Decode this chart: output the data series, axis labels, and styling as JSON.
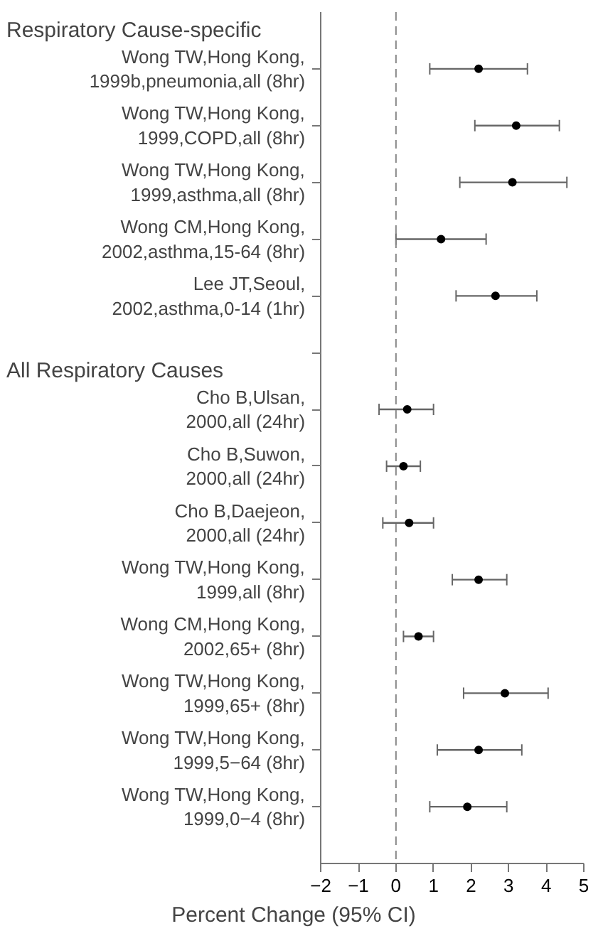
{
  "chart_data": {
    "type": "scatter",
    "orientation": "horizontal",
    "xlabel": "Percent Change (95% CI)",
    "categories": [
      "Wong TW,Hong Kong,\n1999b,pneumonia,all (8hr)",
      "Wong TW,Hong Kong,\n1999,COPD,all (8hr)",
      "Wong TW,Hong Kong,\n1999,asthma,all (8hr)",
      "Wong CM,Hong Kong,\n2002,asthma,15-64 (8hr)",
      "Lee JT,Seoul,\n2002,asthma,0-14 (1hr)",
      null,
      "Cho B,Ulsan,\n2000,all (24hr)",
      "Cho B,Suwon,\n2000,all (24hr)",
      "Cho B,Daejeon,\n2000,all (24hr)",
      "Wong TW,Hong Kong,\n1999,all (8hr)",
      "Wong CM,Hong Kong,\n2002,65+ (8hr)",
      "Wong TW,Hong Kong,\n1999,65+ (8hr)",
      "Wong TW,Hong Kong,\n1999,5−64 (8hr)",
      "Wong TW,Hong Kong,\n1999,0−4 (8hr)"
    ],
    "values": [
      2.2,
      3.2,
      3.1,
      1.2,
      2.65,
      null,
      0.3,
      0.2,
      0.35,
      2.2,
      0.6,
      2.9,
      2.2,
      1.9
    ],
    "errors": [
      [
        0.9,
        3.5
      ],
      [
        2.1,
        4.35
      ],
      [
        1.7,
        4.55
      ],
      [
        0.0,
        2.4
      ],
      [
        1.6,
        3.75
      ],
      null,
      [
        -0.45,
        1.0
      ],
      [
        -0.25,
        0.65
      ],
      [
        -0.35,
        1.0
      ],
      [
        1.5,
        2.95
      ],
      [
        0.2,
        1.0
      ],
      [
        1.8,
        4.05
      ],
      [
        1.1,
        3.35
      ],
      [
        0.9,
        2.95
      ]
    ],
    "color": "#000000",
    "annotations": [
      "Respiratory Cause-specific",
      "All Respiratory Causes"
    ],
    "xlim": [
      -2,
      5
    ],
    "xticks": [
      -2,
      -1,
      0,
      1,
      2,
      3,
      4,
      5
    ],
    "ref_lines": [
      {
        "axis": "x",
        "value": 0,
        "color": "#888888",
        "line_style": "dashed"
      }
    ],
    "grid": false,
    "marker": "circle"
  }
}
